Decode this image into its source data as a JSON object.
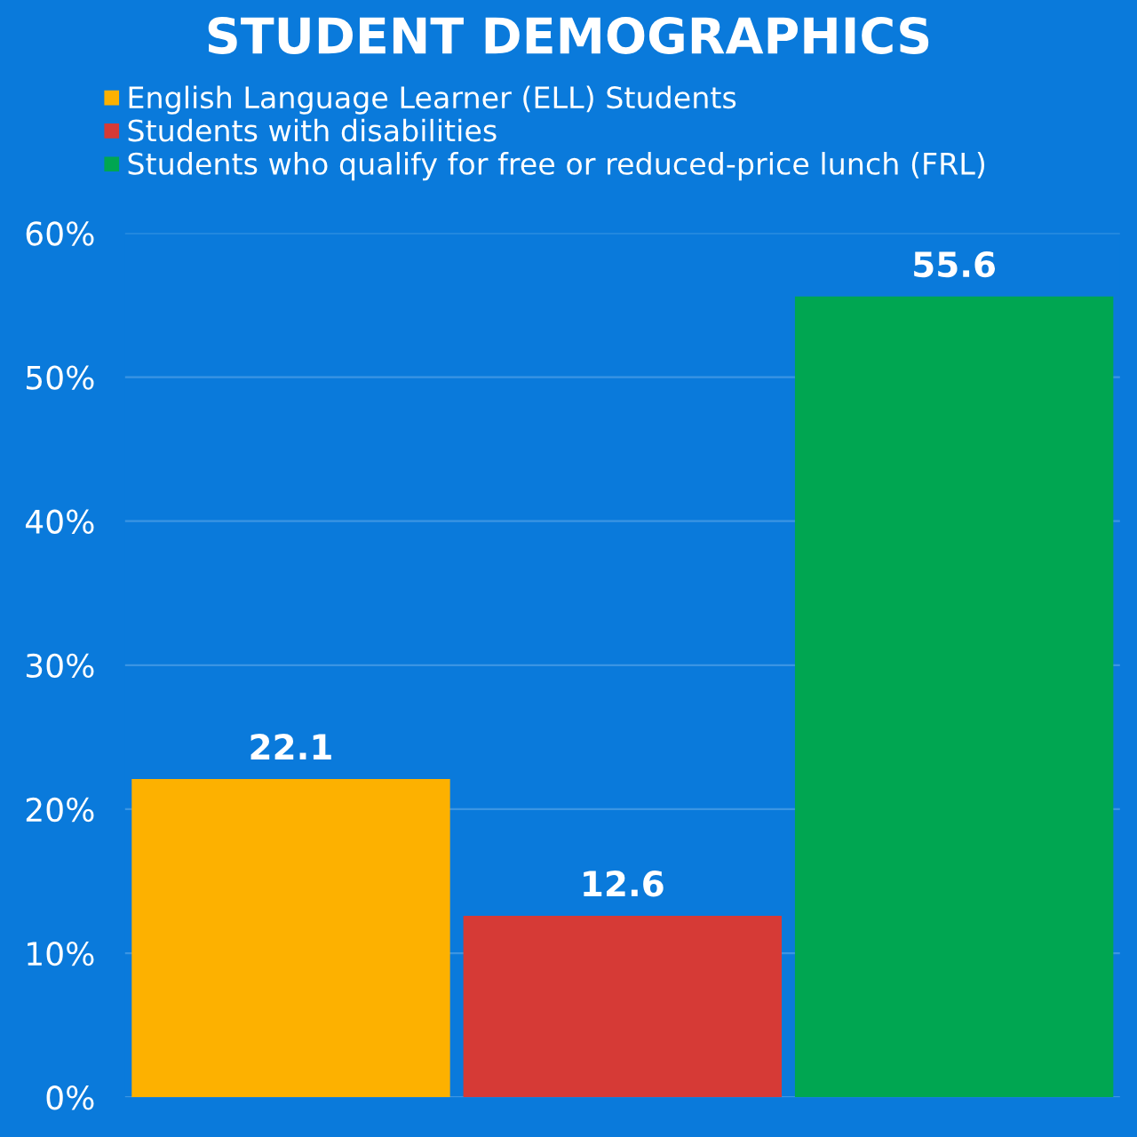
{
  "chart_data": {
    "type": "bar",
    "title": "STUDENT DEMOGRAPHICS",
    "categories": [
      null,
      null,
      null
    ],
    "series": [
      {
        "name": "English Language Learner (ELL) Students",
        "color": "#fdb100",
        "values": [
          22.1,
          null,
          null
        ]
      },
      {
        "name": "Students with disabilities",
        "color": "#d63a36",
        "values": [
          null,
          12.6,
          null
        ]
      },
      {
        "name": "Students who qualify for free or reduced-price lunch (FRL)",
        "color": "#00a651",
        "values": [
          null,
          null,
          55.6
        ]
      }
    ],
    "ylim": [
      0,
      60
    ],
    "yticks": [
      {
        "value": 0,
        "label": "0%"
      },
      {
        "value": 10,
        "label": "10%"
      },
      {
        "value": 20,
        "label": "20%"
      },
      {
        "value": 30,
        "label": "30%"
      },
      {
        "value": 40,
        "label": "40%"
      },
      {
        "value": 50,
        "label": "50%"
      },
      {
        "value": 60,
        "label": "60%"
      }
    ],
    "grid": "y",
    "legend": "top left",
    "data_labels": true,
    "marker": "square"
  }
}
